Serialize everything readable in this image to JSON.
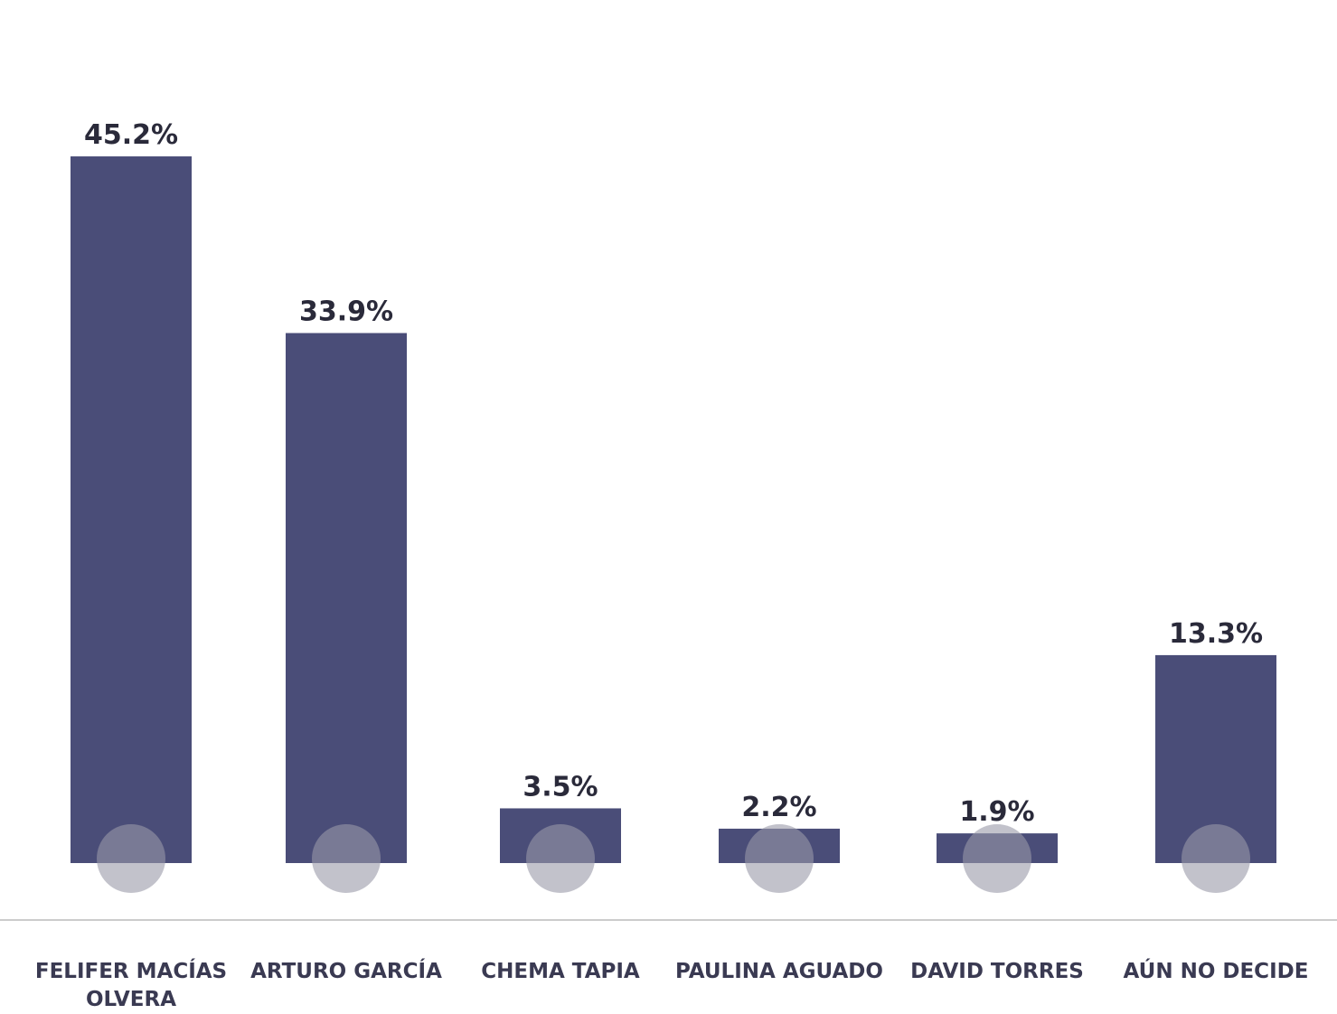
{
  "chart_data": {
    "type": "bar",
    "categories": [
      "FELIFER MACÍAS OLVERA",
      "ARTURO GARCÍA",
      "CHEMA TAPIA",
      "PAULINA AGUADO",
      "DAVID TORRES",
      "AÚN NO DECIDE"
    ],
    "values": [
      45.2,
      33.9,
      3.5,
      2.2,
      1.9,
      13.3
    ],
    "value_labels": [
      "45.2%",
      "33.9%",
      "3.5%",
      "2.2%",
      "1.9%",
      "13.3%"
    ],
    "color": "#4a4d78"
  }
}
